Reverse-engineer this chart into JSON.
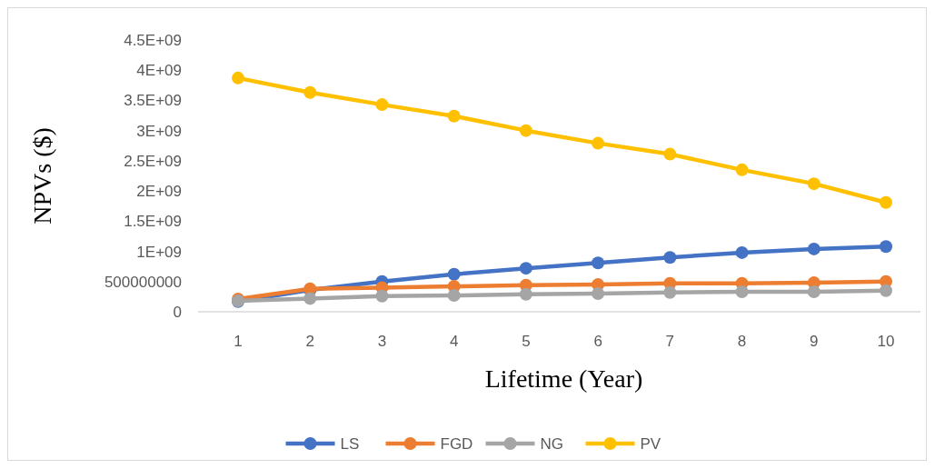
{
  "chart_data": {
    "type": "line",
    "xlabel": "Lifetime (Year)",
    "ylabel": "NPVs ($)",
    "categories": [
      "1",
      "2",
      "3",
      "4",
      "5",
      "6",
      "7",
      "8",
      "9",
      "10"
    ],
    "series": [
      {
        "name": "LS",
        "color": "#4472c4",
        "values": [
          170000000,
          360000000,
          500000000,
          620000000,
          720000000,
          810000000,
          900000000,
          980000000,
          1040000000,
          1080000000
        ]
      },
      {
        "name": "FGD",
        "color": "#ed7d31",
        "values": [
          210000000,
          380000000,
          400000000,
          420000000,
          440000000,
          450000000,
          470000000,
          470000000,
          480000000,
          500000000
        ]
      },
      {
        "name": "NG",
        "color": "#a5a5a5",
        "values": [
          180000000,
          220000000,
          260000000,
          270000000,
          290000000,
          300000000,
          320000000,
          330000000,
          330000000,
          350000000
        ]
      },
      {
        "name": "PV",
        "color": "#ffc000",
        "values": [
          3870000000,
          3630000000,
          3430000000,
          3240000000,
          3000000000,
          2790000000,
          2610000000,
          2350000000,
          2120000000,
          1810000000
        ]
      }
    ],
    "ylim": [
      0,
      4500000000
    ],
    "yticks": [
      0,
      500000000,
      {
        "value": 1000000000,
        "label": "1E+09"
      },
      {
        "value": 1500000000,
        "label": "1.5E+09"
      },
      {
        "value": 2000000000,
        "label": "2E+09"
      },
      {
        "value": 2500000000,
        "label": "2.5E+09"
      },
      {
        "value": 3000000000,
        "label": "3E+09"
      },
      {
        "value": 3500000000,
        "label": "3.5E+09"
      },
      {
        "value": 4000000000,
        "label": "4E+09"
      },
      {
        "value": 4500000000,
        "label": "4.5E+09"
      }
    ],
    "legend": "bottom",
    "marker": "circle",
    "line_style": "solid"
  }
}
